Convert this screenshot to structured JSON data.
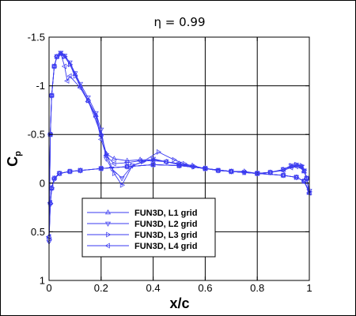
{
  "chart_data": {
    "type": "line",
    "title": "η = 0.99",
    "xlabel": "x/c",
    "ylabel": "C",
    "ylabel_subscript": "p",
    "xlim": [
      0,
      1
    ],
    "ylim": [
      1,
      -1.5
    ],
    "y_inverted": true,
    "grid": true,
    "legend_position": "lower-left",
    "x_ticks": [
      0,
      0.2,
      0.4,
      0.6,
      0.8,
      1
    ],
    "x_tick_labels": [
      "0",
      "0.2",
      "0.4",
      "0.6",
      "0.8",
      "1"
    ],
    "y_ticks": [
      -1.5,
      -1,
      -0.5,
      0,
      0.5,
      1
    ],
    "y_tick_labels": [
      "-1.5",
      "-1",
      "-0.5",
      "0",
      "0.5",
      "1"
    ],
    "line_color": "#3a3af0",
    "series": [
      {
        "name": "FUN3D, L1 grid",
        "marker": "triangle-up",
        "upper": {
          "x": [
            0,
            0.005,
            0.01,
            0.02,
            0.03,
            0.045,
            0.06,
            0.08,
            0.1,
            0.12,
            0.15,
            0.18,
            0.2,
            0.22,
            0.25,
            0.3,
            0.35,
            0.4,
            0.45,
            0.5,
            0.55,
            0.6,
            0.65,
            0.7,
            0.75,
            0.8,
            0.85,
            0.9,
            0.93,
            0.95,
            0.97,
            0.98,
            0.99,
            1.0
          ],
          "y": [
            0.55,
            -0.5,
            -0.9,
            -1.2,
            -1.3,
            -1.33,
            -1.3,
            -1.22,
            -1.12,
            -1.0,
            -0.85,
            -0.7,
            -0.5,
            -0.3,
            -0.25,
            -0.23,
            -0.24,
            -0.24,
            -0.22,
            -0.2,
            -0.18,
            -0.15,
            -0.13,
            -0.12,
            -0.12,
            -0.1,
            -0.11,
            -0.14,
            -0.17,
            -0.18,
            -0.17,
            -0.12,
            -0.05,
            0.1
          ]
        },
        "lower": {
          "x": [
            0,
            0.005,
            0.01,
            0.02,
            0.04,
            0.08,
            0.12,
            0.2,
            0.3,
            0.4,
            0.5,
            0.6,
            0.7,
            0.8,
            0.9,
            0.95,
            0.98,
            1.0
          ],
          "y": [
            0.55,
            0.2,
            0.05,
            -0.05,
            -0.1,
            -0.12,
            -0.13,
            -0.15,
            -0.17,
            -0.19,
            -0.18,
            -0.15,
            -0.12,
            -0.1,
            -0.08,
            -0.06,
            -0.02,
            0.1
          ]
        }
      },
      {
        "name": "FUN3D, L2 grid",
        "marker": "triangle-down",
        "upper": {
          "x": [
            0,
            0.005,
            0.01,
            0.02,
            0.03,
            0.045,
            0.06,
            0.08,
            0.1,
            0.12,
            0.15,
            0.18,
            0.2,
            0.22,
            0.24,
            0.28,
            0.32,
            0.4,
            0.45,
            0.5,
            0.55,
            0.6,
            0.65,
            0.7,
            0.75,
            0.8,
            0.85,
            0.9,
            0.93,
            0.95,
            0.97,
            0.98,
            0.99,
            1.0
          ],
          "y": [
            0.6,
            -0.5,
            -0.9,
            -1.2,
            -1.3,
            -1.34,
            -1.31,
            -1.24,
            -1.13,
            -1.02,
            -0.88,
            -0.72,
            -0.55,
            -0.25,
            -0.15,
            -0.05,
            -0.18,
            -0.25,
            -0.22,
            -0.2,
            -0.17,
            -0.15,
            -0.13,
            -0.12,
            -0.11,
            -0.1,
            -0.11,
            -0.14,
            -0.18,
            -0.19,
            -0.17,
            -0.13,
            -0.05,
            0.08
          ]
        },
        "lower": {
          "x": [
            0,
            0.005,
            0.01,
            0.02,
            0.04,
            0.08,
            0.12,
            0.2,
            0.3,
            0.4,
            0.5,
            0.6,
            0.7,
            0.8,
            0.9,
            0.95,
            0.98,
            1.0
          ],
          "y": [
            0.6,
            0.22,
            0.06,
            -0.04,
            -0.1,
            -0.12,
            -0.13,
            -0.15,
            -0.17,
            -0.19,
            -0.18,
            -0.15,
            -0.12,
            -0.1,
            -0.08,
            -0.06,
            -0.02,
            0.08
          ]
        }
      },
      {
        "name": "FUN3D, L3 grid",
        "marker": "triangle-right",
        "upper": {
          "x": [
            0,
            0.005,
            0.01,
            0.02,
            0.03,
            0.045,
            0.06,
            0.08,
            0.1,
            0.15,
            0.2,
            0.22,
            0.25,
            0.28,
            0.32,
            0.36,
            0.42,
            0.48,
            0.52,
            0.56,
            0.6,
            0.65,
            0.7,
            0.75,
            0.8,
            0.85,
            0.9,
            0.93,
            0.95,
            0.97,
            0.98,
            0.99,
            1.0
          ],
          "y": [
            0.58,
            -0.5,
            -0.9,
            -1.2,
            -1.3,
            -1.33,
            -1.3,
            -1.22,
            -1.1,
            -0.85,
            -0.5,
            -0.3,
            -0.1,
            0.02,
            -0.18,
            -0.22,
            -0.32,
            -0.24,
            -0.2,
            -0.17,
            -0.15,
            -0.13,
            -0.12,
            -0.11,
            -0.1,
            -0.11,
            -0.14,
            -0.18,
            -0.19,
            -0.18,
            -0.13,
            -0.05,
            0.09
          ]
        },
        "lower": {
          "x": [
            0,
            0.005,
            0.01,
            0.02,
            0.04,
            0.08,
            0.12,
            0.2,
            0.3,
            0.4,
            0.5,
            0.6,
            0.7,
            0.8,
            0.9,
            0.95,
            0.98,
            1.0
          ],
          "y": [
            0.58,
            0.21,
            0.05,
            -0.05,
            -0.1,
            -0.12,
            -0.13,
            -0.15,
            -0.17,
            -0.19,
            -0.18,
            -0.15,
            -0.12,
            -0.1,
            -0.08,
            -0.06,
            -0.02,
            0.09
          ]
        }
      },
      {
        "name": "FUN3D, L4 grid",
        "marker": "triangle-left",
        "upper": {
          "x": [
            0,
            0.005,
            0.01,
            0.02,
            0.03,
            0.045,
            0.06,
            0.07,
            0.08,
            0.12,
            0.15,
            0.18,
            0.2,
            0.22,
            0.25,
            0.3,
            0.35,
            0.4,
            0.45,
            0.5,
            0.55,
            0.6,
            0.65,
            0.7,
            0.75,
            0.8,
            0.85,
            0.9,
            0.93,
            0.95,
            0.97,
            0.98,
            0.99,
            1.0
          ],
          "y": [
            0.55,
            -0.5,
            -0.9,
            -1.2,
            -1.3,
            -1.33,
            -1.2,
            -1.05,
            -1.1,
            -0.98,
            -0.84,
            -0.68,
            -0.45,
            -0.28,
            -0.2,
            -0.21,
            -0.23,
            -0.23,
            -0.22,
            -0.19,
            -0.17,
            -0.15,
            -0.13,
            -0.12,
            -0.11,
            -0.1,
            -0.11,
            -0.13,
            -0.16,
            -0.17,
            -0.16,
            -0.12,
            -0.05,
            0.1
          ]
        },
        "lower": {
          "x": [
            0,
            0.005,
            0.01,
            0.02,
            0.04,
            0.08,
            0.12,
            0.2,
            0.3,
            0.4,
            0.5,
            0.6,
            0.7,
            0.8,
            0.9,
            0.95,
            0.98,
            1.0
          ],
          "y": [
            0.55,
            0.2,
            0.05,
            -0.05,
            -0.1,
            -0.12,
            -0.13,
            -0.15,
            -0.17,
            -0.19,
            -0.18,
            -0.15,
            -0.12,
            -0.1,
            -0.08,
            -0.06,
            -0.02,
            0.1
          ]
        }
      }
    ]
  }
}
